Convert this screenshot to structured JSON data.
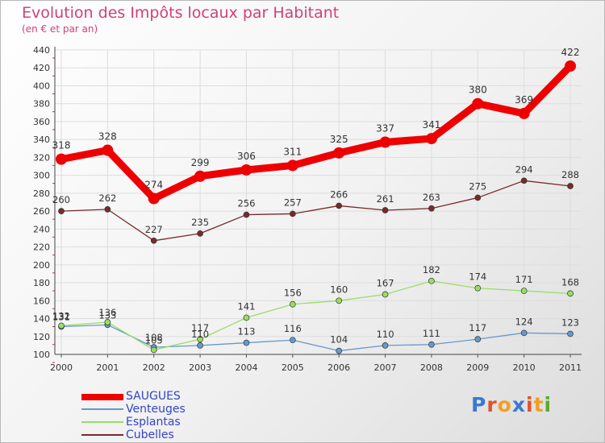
{
  "title": "Evolution des Impôts locaux par Habitant",
  "subtitle": "(en € et par an)",
  "logo_text": "Proxiti",
  "chart_data": {
    "type": "line",
    "title": "Evolution des Impôts locaux par Habitant",
    "subtitle": "(en € et par an)",
    "xlabel": "",
    "ylabel": "",
    "categories": [
      "2000",
      "2001",
      "2002",
      "2003",
      "2004",
      "2005",
      "2006",
      "2007",
      "2008",
      "2009",
      "2010",
      "2011"
    ],
    "ylim": [
      100,
      440
    ],
    "yticks": [
      100,
      120,
      140,
      160,
      180,
      200,
      220,
      240,
      260,
      280,
      300,
      320,
      340,
      360,
      380,
      400,
      420,
      440
    ],
    "grid": true,
    "legend_position": "bottom-left",
    "series": [
      {
        "name": "SAUGUES",
        "color": "#ee0000",
        "values": [
          318,
          328,
          274,
          299,
          306,
          311,
          325,
          337,
          341,
          380,
          369,
          422
        ]
      },
      {
        "name": "Venteuges",
        "color": "#6699cc",
        "values": [
          131,
          133,
          108,
          110,
          113,
          116,
          104,
          110,
          111,
          117,
          124,
          123
        ]
      },
      {
        "name": "Esplantas",
        "color": "#99dd66",
        "values": [
          132,
          136,
          105,
          117,
          141,
          156,
          160,
          167,
          182,
          174,
          171,
          168
        ]
      },
      {
        "name": "Cubelles",
        "color": "#7a2a2a",
        "values": [
          260,
          262,
          227,
          235,
          256,
          257,
          266,
          261,
          263,
          275,
          294,
          288
        ]
      }
    ]
  }
}
